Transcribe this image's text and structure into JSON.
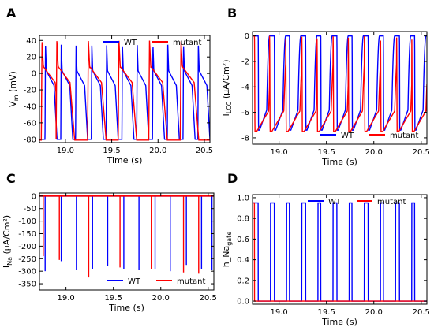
{
  "colors": {
    "wt": "#0000ff",
    "mutant": "#ff0000"
  },
  "chart_data": [
    {
      "type": "line",
      "panel_letter": "A",
      "xlabel": "Time (s)",
      "ylabel_main": "V",
      "ylabel_sub": "m",
      "ylabel_rest": " (mV)",
      "xlim": [
        18.72,
        20.56
      ],
      "ylim": [
        -84,
        46
      ],
      "xticks": [
        19.0,
        19.5,
        20.0,
        20.5
      ],
      "xticklabels": [
        "19.0",
        "19.5",
        "20.0",
        "20.5"
      ],
      "yticks": [
        -80,
        -60,
        -40,
        -20,
        0,
        20,
        40
      ],
      "yticklabels": [
        "-80",
        "-60",
        "-40",
        "-20",
        "0",
        "20",
        "40"
      ],
      "legend": {
        "position": "top-right",
        "entries": [
          "WT",
          "mutant"
        ]
      },
      "series": [
        {
          "name": "WT",
          "color_key": "wt",
          "beat_starts": [
            18.78,
            18.95,
            19.11,
            19.28,
            19.44,
            19.61,
            19.77,
            19.94,
            20.1,
            20.27,
            20.43
          ],
          "rest": -80,
          "peak": 35,
          "plateau": 3,
          "duration": 0.13
        },
        {
          "name": "mutant",
          "color_key": "mutant",
          "beat_starts": [
            18.74,
            18.9,
            19.24,
            19.57,
            19.9,
            20.24
          ],
          "rest": -81,
          "peak": 40,
          "plateau": 8,
          "duration": 0.2
        }
      ]
    },
    {
      "type": "line",
      "panel_letter": "B",
      "xlabel": "Time (s)",
      "ylabel_main": "I",
      "ylabel_sub": "LCC",
      "ylabel_rest": " (μA/Cm²)",
      "xlim": [
        18.72,
        20.56
      ],
      "ylim": [
        -8.5,
        0.35
      ],
      "xticks": [
        19.0,
        19.5,
        20.0,
        20.5
      ],
      "xticklabels": [
        "19.0",
        "19.5",
        "20.0",
        "20.5"
      ],
      "yticks": [
        -8,
        -6,
        -4,
        -2,
        0
      ],
      "yticklabels": [
        "-8",
        "-6",
        "-4",
        "-2",
        "0"
      ],
      "legend": {
        "position": "bottom-right",
        "entries": [
          "WT",
          "mutant"
        ]
      },
      "series": [
        {
          "name": "WT",
          "color_key": "wt",
          "beat_starts": [
            18.78,
            18.95,
            19.11,
            19.28,
            19.44,
            19.61,
            19.77,
            19.94,
            20.1,
            20.27,
            20.43
          ],
          "minimum": -7.4,
          "duration": 0.12
        },
        {
          "name": "mutant",
          "color_key": "mutant",
          "beat_starts": [
            18.74,
            18.9,
            19.07,
            19.24,
            19.4,
            19.57,
            19.73,
            19.9,
            20.07,
            20.24,
            20.4
          ],
          "minimum": -7.5,
          "duration": 0.2
        }
      ]
    },
    {
      "type": "line",
      "panel_letter": "C",
      "xlabel": "Time (s)",
      "ylabel_main": "I",
      "ylabel_sub": "Na",
      "ylabel_rest": " (μA/Cm²)",
      "xlim": [
        18.72,
        20.56
      ],
      "ylim": [
        -375,
        12
      ],
      "xticks": [
        19.0,
        19.5,
        20.0,
        20.5
      ],
      "xticklabels": [
        "19.0",
        "19.5",
        "20.0",
        "20.5"
      ],
      "yticks": [
        -350,
        -300,
        -250,
        -200,
        -150,
        -100,
        -50,
        0
      ],
      "yticklabels": [
        "-350",
        "-300",
        "-250",
        "-200",
        "-150",
        "-100",
        "-50",
        "0"
      ],
      "legend": {
        "position": "bottom-right",
        "entries": [
          "WT",
          "mutant"
        ]
      },
      "series": [
        {
          "name": "WT",
          "color_key": "wt",
          "spike_times": [
            18.78,
            18.95,
            19.11,
            19.28,
            19.44,
            19.61,
            19.77,
            19.94,
            20.1,
            20.27,
            20.43,
            20.54
          ],
          "spike_minima": [
            -300,
            -260,
            -295,
            -290,
            -280,
            -290,
            -295,
            -290,
            -300,
            -275,
            -290,
            -295
          ]
        },
        {
          "name": "mutant",
          "color_key": "mutant",
          "spike_times": [
            18.76,
            18.93,
            19.24,
            19.57,
            19.9,
            20.24,
            20.4
          ],
          "spike_minima": [
            -240,
            -255,
            -325,
            -285,
            -290,
            -305,
            -310
          ]
        }
      ]
    },
    {
      "type": "line",
      "panel_letter": "D",
      "xlabel": "Time (s)",
      "ylabel_main": "h_Na",
      "ylabel_sub": "gate",
      "ylabel_rest": "",
      "xlim": [
        18.72,
        20.56
      ],
      "ylim": [
        -0.03,
        1.03
      ],
      "xticks": [
        19.0,
        19.5,
        20.0,
        20.5
      ],
      "xticklabels": [
        "19.0",
        "19.5",
        "20.0",
        "20.5"
      ],
      "yticks": [
        0.0,
        0.2,
        0.4,
        0.6,
        0.8,
        1.0
      ],
      "yticklabels": [
        "0.0",
        "0.2",
        "0.4",
        "0.6",
        "0.8",
        "1.0"
      ],
      "legend": {
        "position": "top-center",
        "entries": [
          "WT",
          "mutant"
        ]
      },
      "series": [
        {
          "name": "WT",
          "color_key": "wt",
          "beat_starts": [
            18.78,
            18.95,
            19.11,
            19.28,
            19.44,
            19.61,
            19.77,
            19.94,
            20.1,
            20.27,
            20.43
          ],
          "high": 0.95,
          "low": 0.0,
          "duration": 0.13
        },
        {
          "name": "mutant",
          "color_key": "mutant",
          "beat_starts": [
            18.74,
            18.9,
            19.07,
            19.24,
            19.4,
            19.57,
            19.73,
            19.9,
            20.07,
            20.24,
            20.4
          ],
          "high": 0.95,
          "low": 0.0,
          "duration": 0.2
        }
      ]
    }
  ]
}
